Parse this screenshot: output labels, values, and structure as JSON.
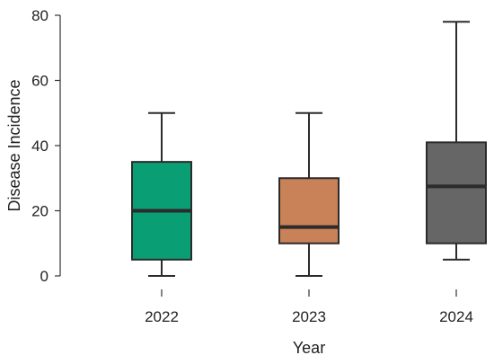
{
  "chart_data": {
    "type": "box",
    "xlabel": "Year",
    "ylabel": "Disease Incidence",
    "ylim": [
      0,
      80
    ],
    "yticks": [
      0,
      20,
      40,
      60,
      80
    ],
    "grid": false,
    "categories": [
      "2022",
      "2023",
      "2024"
    ],
    "boxes": [
      {
        "category": "2022",
        "min": 0,
        "q1": 5,
        "median": 20,
        "q3": 35,
        "max": 50,
        "color": "#0a9e75"
      },
      {
        "category": "2023",
        "min": 0,
        "q1": 10,
        "median": 15,
        "q3": 30,
        "max": 50,
        "color": "#c98158"
      },
      {
        "category": "2024",
        "min": 5,
        "q1": 10,
        "median": 27.5,
        "q3": 41,
        "max": 78,
        "color": "#666666"
      }
    ]
  }
}
